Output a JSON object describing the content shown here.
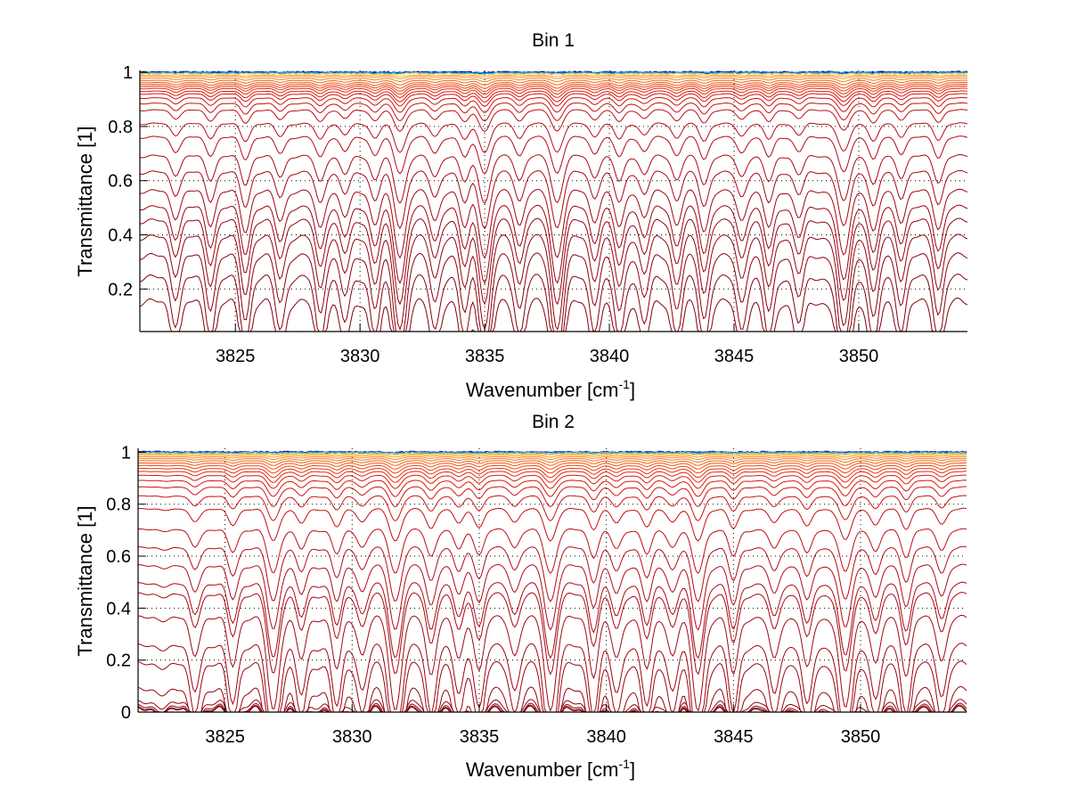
{
  "chart_data": [
    {
      "type": "line",
      "title": "Bin 1",
      "xlabel": "Wavenumber [cm^-1]",
      "xlabel_main": "Wavenumber [cm",
      "xlabel_sup": "-1",
      "xlabel_end": "]",
      "ylabel": "Transmittance [1]",
      "xlim": [
        3821.17,
        3854.36
      ],
      "ylim": [
        0.043,
        1.007
      ],
      "xticks": [
        3825,
        3830,
        3835,
        3840,
        3845,
        3850
      ],
      "xtick_labels": [
        "3825",
        "3830",
        "3835",
        "3840",
        "3845",
        "3850"
      ],
      "yticks": [
        0.2,
        0.4,
        0.6,
        0.8,
        1
      ],
      "ytick_labels": [
        "0.2",
        "0.4",
        "0.6",
        "0.8",
        "1"
      ],
      "grid": "dotted",
      "legend": "none",
      "series_description": "Family of transmittance spectra, one per path/layer, colored from blue (near 1) through yellow/orange to dark red (lowest baseline)",
      "baselines": [
        1.0,
        1.0,
        0.998,
        0.995,
        0.99,
        0.985,
        0.978,
        0.97,
        0.962,
        0.955,
        0.948,
        0.94,
        0.93,
        0.92,
        0.905,
        0.885,
        0.86,
        0.81,
        0.76,
        0.69,
        0.63,
        0.56,
        0.5,
        0.45,
        0.39,
        0.32,
        0.24,
        0.15
      ],
      "absorption_lines": [
        3822.6,
        3824.0,
        3825.4,
        3826.8,
        3828.4,
        3829.4,
        3830.6,
        3831.6,
        3833.0,
        3834.2,
        3835.0,
        3836.4,
        3837.9,
        3839.4,
        3840.4,
        3841.4,
        3842.7,
        3843.8,
        3845.3,
        3846.4,
        3847.6,
        3849.4,
        3850.6,
        3851.7,
        3853.2
      ],
      "strong_lines": [
        3831.6,
        3835.0,
        3837.9,
        3849.4
      ]
    },
    {
      "type": "line",
      "title": "Bin 2",
      "xlabel": "Wavenumber [cm^-1]",
      "xlabel_main": "Wavenumber [cm",
      "xlabel_sup": "-1",
      "xlabel_end": "]",
      "ylabel": "Transmittance [1]",
      "xlim": [
        3821.58,
        3854.17
      ],
      "ylim": [
        0,
        1.015
      ],
      "xticks": [
        3825,
        3830,
        3835,
        3840,
        3845,
        3850
      ],
      "xtick_labels": [
        "3825",
        "3830",
        "3835",
        "3840",
        "3845",
        "3850"
      ],
      "yticks": [
        0,
        0.2,
        0.4,
        0.6,
        0.8,
        1
      ],
      "ytick_labels": [
        "0",
        "0.2",
        "0.4",
        "0.6",
        "0.8",
        "1"
      ],
      "grid": "dotted",
      "legend": "none",
      "series_description": "Family of transmittance spectra, blue near 1 down through orange/red to near-zero dark red curves",
      "baselines": [
        1.0,
        1.0,
        0.999,
        0.997,
        0.993,
        0.988,
        0.982,
        0.975,
        0.967,
        0.958,
        0.948,
        0.937,
        0.925,
        0.91,
        0.89,
        0.865,
        0.83,
        0.78,
        0.7,
        0.63,
        0.56,
        0.49,
        0.45,
        0.36,
        0.25,
        0.18,
        0.08,
        0.03,
        0.015,
        0.008,
        0.004
      ],
      "absorption_lines": [
        3823.8,
        3825.3,
        3826.9,
        3828.0,
        3829.4,
        3830.4,
        3831.7,
        3833.1,
        3834.2,
        3835.0,
        3836.4,
        3837.8,
        3839.5,
        3840.4,
        3841.6,
        3842.6,
        3843.6,
        3845.0,
        3846.6,
        3847.9,
        3849.4,
        3850.6,
        3851.8,
        3853.2
      ],
      "strong_lines": [
        3826.9,
        3831.7,
        3837.8,
        3843.6,
        3849.4
      ]
    }
  ]
}
